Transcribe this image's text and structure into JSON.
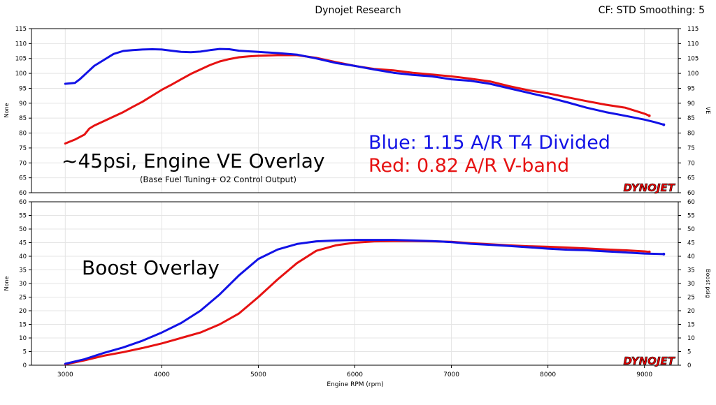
{
  "header": {
    "title": "Dynojet Research",
    "right_info": "CF: STD Smoothing: 5"
  },
  "x_axis": {
    "label": "Engine RPM  (rpm)",
    "range": [
      2650,
      9350
    ],
    "ticks": [
      3000,
      4000,
      5000,
      6000,
      7000,
      8000,
      9000
    ],
    "tick_labels": [
      "3000",
      "4000",
      "5000",
      "6000",
      "7000",
      "8000",
      "9000"
    ]
  },
  "brand_logo": "DYNOJET",
  "colors": {
    "blue": "#1212e6",
    "red": "#e61212",
    "frame": "#000000",
    "grid": "#e4e4e4"
  },
  "chart_data": [
    {
      "type": "line",
      "panel": "top",
      "ylabel_left": "None",
      "ylabel_right": "VE",
      "ylim": [
        60,
        115
      ],
      "yticks": [
        60,
        65,
        70,
        75,
        80,
        85,
        90,
        95,
        100,
        105,
        110,
        115
      ],
      "grid": true,
      "annotations": {
        "title": "~45psi, Engine VE Overlay",
        "subtitle": "(Base Fuel Tuning+ O2 Control Output)",
        "legend_blue": "Blue: 1.15 A/R T4 Divided",
        "legend_red": "Red:  0.82 A/R V-band"
      },
      "series": [
        {
          "color": "blue",
          "x": [
            3000,
            3100,
            3150,
            3300,
            3400,
            3500,
            3600,
            3700,
            3800,
            3900,
            4000,
            4100,
            4200,
            4300,
            4400,
            4500,
            4600,
            4700,
            4800,
            4900,
            5000,
            5200,
            5400,
            5600,
            5800,
            6000,
            6200,
            6400,
            6600,
            6800,
            7000,
            7200,
            7400,
            7600,
            7800,
            8000,
            8200,
            8400,
            8600,
            8800,
            9000,
            9100,
            9200
          ],
          "y": [
            96.5,
            96.8,
            98,
            102.5,
            104.5,
            106.5,
            107.5,
            107.8,
            108,
            108.1,
            108,
            107.6,
            107.2,
            107.1,
            107.3,
            107.8,
            108.2,
            108.1,
            107.6,
            107.4,
            107.2,
            106.8,
            106.3,
            105,
            103.5,
            102.5,
            101.3,
            100.2,
            99.5,
            99,
            98,
            97.5,
            96.5,
            95,
            93.5,
            92,
            90.3,
            88.5,
            87,
            85.8,
            84.5,
            83.7,
            82.8
          ]
        },
        {
          "color": "red",
          "x": [
            3000,
            3100,
            3200,
            3250,
            3300,
            3400,
            3500,
            3600,
            3700,
            3800,
            3900,
            4000,
            4100,
            4200,
            4300,
            4400,
            4500,
            4600,
            4700,
            4800,
            4900,
            5000,
            5200,
            5400,
            5600,
            5800,
            6000,
            6200,
            6400,
            6600,
            6800,
            7000,
            7200,
            7400,
            7600,
            7800,
            8000,
            8200,
            8400,
            8600,
            8800,
            9000,
            9050
          ],
          "y": [
            76.5,
            77.8,
            79.5,
            81.5,
            82.5,
            84,
            85.5,
            87,
            88.8,
            90.5,
            92.5,
            94.5,
            96.2,
            98,
            99.8,
            101.3,
            102.8,
            104,
            104.8,
            105.4,
            105.7,
            105.9,
            106.1,
            106.1,
            105.2,
            103.8,
            102.5,
            101.5,
            101,
            100.2,
            99.6,
            99,
            98.2,
            97.3,
            95.7,
            94.3,
            93.3,
            92,
            90.7,
            89.5,
            88.5,
            86.5,
            85.8
          ]
        }
      ]
    },
    {
      "type": "line",
      "panel": "bottom",
      "ylabel_left": "None",
      "ylabel_right": "Boost psig",
      "ylim": [
        0,
        60
      ],
      "yticks": [
        0,
        5,
        10,
        15,
        20,
        25,
        30,
        35,
        40,
        45,
        50,
        55,
        60
      ],
      "grid": true,
      "annotations": {
        "title": "Boost Overlay"
      },
      "series": [
        {
          "color": "blue",
          "x": [
            3000,
            3200,
            3400,
            3600,
            3800,
            4000,
            4200,
            4400,
            4600,
            4800,
            5000,
            5200,
            5400,
            5600,
            5800,
            6000,
            6200,
            6400,
            6600,
            6800,
            7000,
            7200,
            7400,
            7600,
            7800,
            8000,
            8200,
            8400,
            8600,
            8800,
            9000,
            9200
          ],
          "y": [
            0.5,
            2.2,
            4.5,
            6.5,
            9,
            12,
            15.5,
            20,
            26,
            33,
            39,
            42.5,
            44.5,
            45.5,
            45.8,
            46,
            46,
            46,
            45.8,
            45.6,
            45.2,
            44.6,
            44.2,
            43.8,
            43.3,
            42.8,
            42.4,
            42.2,
            41.8,
            41.4,
            41,
            40.8
          ]
        },
        {
          "color": "red",
          "x": [
            3000,
            3200,
            3400,
            3600,
            3800,
            4000,
            4200,
            4400,
            4600,
            4800,
            5000,
            5200,
            5400,
            5600,
            5800,
            6000,
            6200,
            6400,
            6600,
            6800,
            7000,
            7200,
            7400,
            7600,
            7800,
            8000,
            8200,
            8400,
            8600,
            8800,
            9000,
            9050
          ],
          "y": [
            0.3,
            1.8,
            3.5,
            4.8,
            6.3,
            8,
            10,
            12,
            15,
            19,
            25,
            31.5,
            37.5,
            42,
            44,
            45,
            45.5,
            45.6,
            45.6,
            45.5,
            45.3,
            44.8,
            44.4,
            44,
            43.7,
            43.5,
            43.2,
            42.9,
            42.5,
            42.2,
            41.8,
            41.6
          ]
        }
      ]
    }
  ]
}
